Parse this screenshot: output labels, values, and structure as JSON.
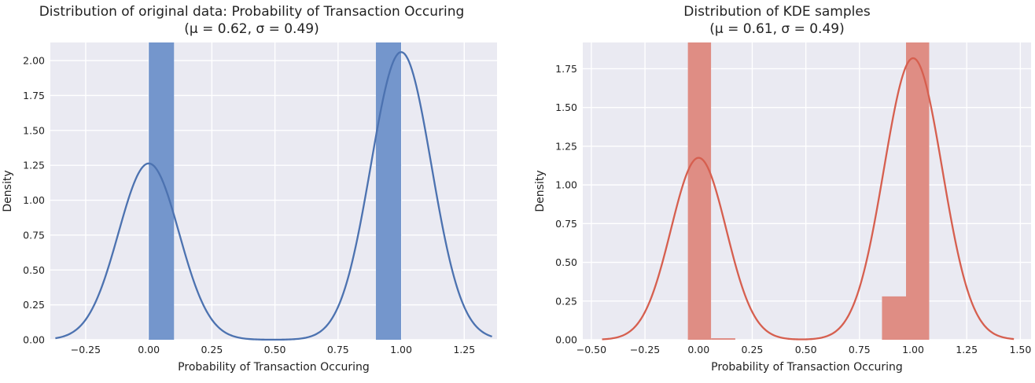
{
  "chart_data": [
    {
      "type": "histogram",
      "title": "Distribution of original data: Probability of Transaction Occuring",
      "subtitle": "(μ = 0.62, σ = 0.49)",
      "xlabel": "Probability of Transaction Occuring",
      "ylabel": "Density",
      "xlim": [
        -0.39,
        1.38
      ],
      "ylim": [
        0,
        2.13
      ],
      "xticks": [
        "−0.25",
        "0.00",
        "0.25",
        "0.50",
        "0.75",
        "1.00",
        "1.25"
      ],
      "yticks": [
        "0.00",
        "0.25",
        "0.50",
        "0.75",
        "1.00",
        "1.25",
        "1.50",
        "1.75",
        "2.00"
      ],
      "grid": true,
      "colors": {
        "bar": "#7496cc",
        "line": "#4c72b0",
        "background": "#eaeaf2"
      },
      "bars": [
        {
          "x0": 0.0,
          "x1": 0.1,
          "height": 2.13
        },
        {
          "x0": 0.9,
          "x1": 1.0,
          "height": 2.13
        }
      ],
      "kde": {
        "x_range": [
          -0.37,
          1.36
        ],
        "components": [
          {
            "mu": 0.0,
            "sigma": 0.12,
            "weight": 0.38
          },
          {
            "mu": 1.0,
            "sigma": 0.12,
            "weight": 0.62
          }
        ]
      }
    },
    {
      "type": "histogram",
      "title": "Distribution of KDE samples",
      "subtitle": "(μ = 0.61, σ = 0.49)",
      "xlabel": "Probability of Transaction Occuring",
      "ylabel": "Density",
      "xlim": [
        -0.54,
        1.55
      ],
      "ylim": [
        0,
        1.92
      ],
      "xticks": [
        "−0.50",
        "−0.25",
        "0.00",
        "0.25",
        "0.50",
        "0.75",
        "1.00",
        "1.25",
        "1.50"
      ],
      "yticks": [
        "0.00",
        "0.25",
        "0.50",
        "0.75",
        "1.00",
        "1.25",
        "1.50",
        "1.75"
      ],
      "grid": true,
      "colors": {
        "bar": "#df8d84",
        "line": "#d65f4f",
        "background": "#eaeaf2"
      },
      "bars": [
        {
          "x0": -0.05,
          "x1": 0.058,
          "height": 1.92
        },
        {
          "x0": 0.058,
          "x1": 0.171,
          "height": 0.01
        },
        {
          "x0": 0.855,
          "x1": 0.967,
          "height": 0.28
        },
        {
          "x0": 0.967,
          "x1": 1.075,
          "height": 1.92
        }
      ],
      "kde": {
        "x_range": [
          -0.45,
          1.47
        ],
        "components": [
          {
            "mu": 0.0,
            "sigma": 0.129,
            "weight": 0.38
          },
          {
            "mu": 1.0,
            "sigma": 0.136,
            "weight": 0.62
          }
        ]
      }
    }
  ]
}
